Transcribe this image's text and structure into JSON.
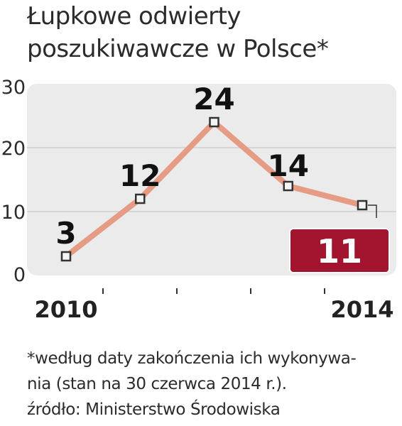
{
  "title_lines": [
    "Łupkowe odwierty",
    "poszukiwawcze w Polsce*"
  ],
  "footnote_lines": [
    "*według daty zakończenia ich wykonywa-",
    "nia (stan na 30 czerwca 2014 r.).",
    "źródło: Ministerstwo Środowiska"
  ],
  "chart_data": {
    "type": "line",
    "x": [
      2010,
      2011,
      2012,
      2013,
      2014
    ],
    "x_tick_labels": [
      "2010",
      "",
      "",
      "",
      "2014"
    ],
    "values": [
      3,
      12,
      24,
      14,
      11
    ],
    "data_labels": [
      "3",
      "12",
      "24",
      "14",
      "11"
    ],
    "highlighted_point_index": 4,
    "ylim": [
      0,
      30
    ],
    "yticks": [
      0,
      10,
      20,
      30
    ],
    "grid": true,
    "colors": {
      "line": "#e59b84",
      "plot_background": "#ebebeb",
      "gridline": "#cfcfcf",
      "highlight_box": "#a3142e",
      "highlight_text": "#ffffff",
      "marker_fill": "#f4f4f4",
      "marker_stroke": "#333333"
    }
  }
}
